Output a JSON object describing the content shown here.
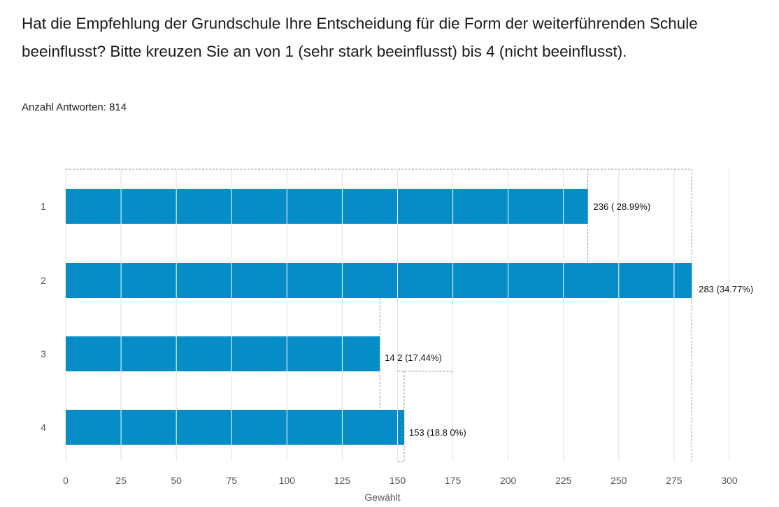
{
  "question": {
    "title": "Hat die Empfehlung der Grundschule Ihre Entscheidung für die Form der weiterführenden Schule beeinflusst? Bitte kreuzen Sie an von 1 (sehr stark beeinflusst) bis 4 (nicht beeinflusst).",
    "response_count_label": "Anzahl Antworten: 814"
  },
  "chart_data": {
    "type": "bar",
    "orientation": "horizontal",
    "title": "Hat die Empfehlung der Grundschule Ihre Entscheidung für die Form der weiterführenden Schule beeinflusst? Bitte kreuzen Sie an von 1 (sehr stark beeinflusst) bis 4 (nicht beeinflusst).",
    "categories": [
      "1",
      "2",
      "3",
      "4"
    ],
    "values": [
      236,
      283,
      142,
      153
    ],
    "data_labels": [
      "236 ( 28.99%)",
      "283 (34.77%)",
      "14 2 (17.44%)",
      "153 (18.8 0%)"
    ],
    "percentages": [
      28.99,
      34.77,
      17.44,
      18.8
    ],
    "xlabel": "Gewählt",
    "ylabel": "",
    "xlim": [
      0,
      300
    ],
    "xticks": [
      0,
      25,
      50,
      75,
      100,
      125,
      150,
      175,
      200,
      225,
      250,
      275,
      300
    ],
    "grid": true,
    "legend": "none",
    "bar_color": "#068dc7"
  }
}
